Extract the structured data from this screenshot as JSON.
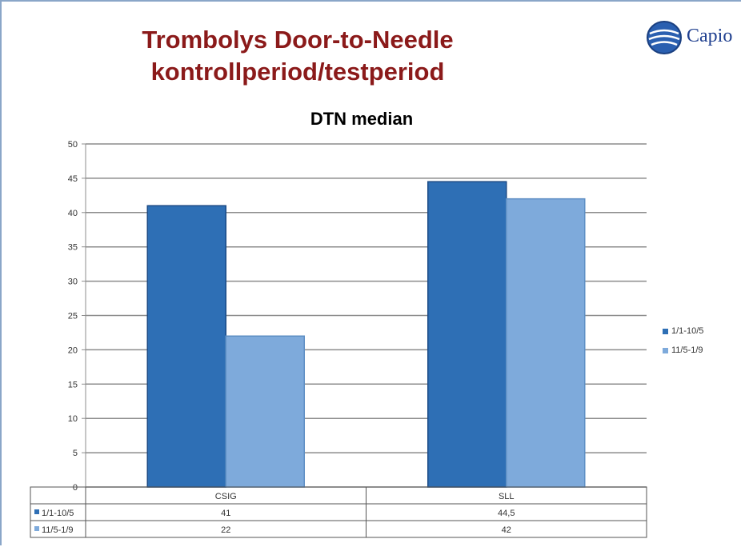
{
  "slide": {
    "title_line1": "Trombolys  Door-to-Needle",
    "title_line2": "kontrollperiod/testperiod",
    "logo_text": "Capio"
  },
  "chart_data": {
    "type": "bar",
    "title": "DTN median",
    "categories": [
      "CSIG",
      "SLL"
    ],
    "series": [
      {
        "name": "1/1-10/5",
        "values": [
          41,
          44.5
        ],
        "value_labels": [
          "41",
          "44,5"
        ],
        "color": "#2e6fb5"
      },
      {
        "name": "11/5-1/9",
        "values": [
          22,
          42
        ],
        "value_labels": [
          "22",
          "42"
        ],
        "color": "#7eaadb"
      }
    ],
    "ylim": [
      0,
      50
    ],
    "yticks": [
      0,
      5,
      10,
      15,
      20,
      25,
      30,
      35,
      40,
      45,
      50
    ],
    "grid": true,
    "legend": "right",
    "data_table": true
  }
}
